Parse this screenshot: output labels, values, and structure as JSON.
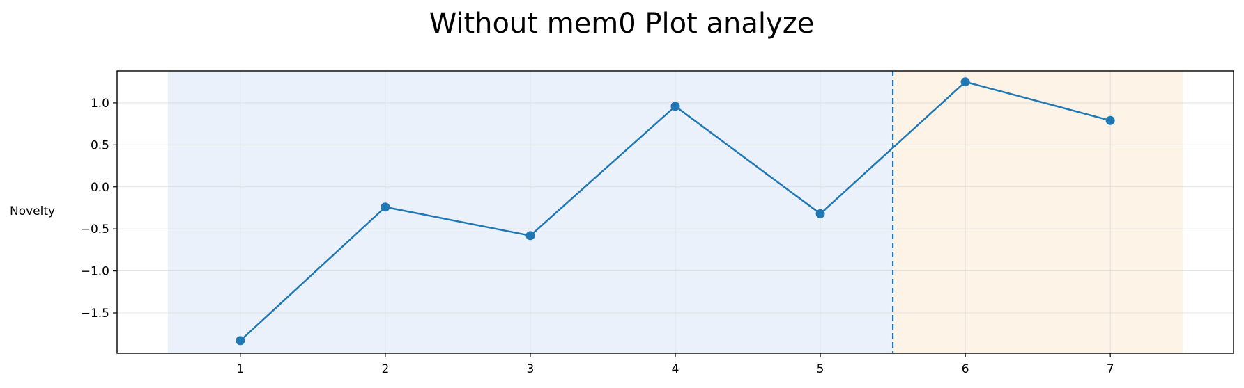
{
  "chart_data": {
    "type": "line",
    "title": "Without mem0 Plot analyze",
    "xlabel": "",
    "ylabel": "Novelty",
    "x": [
      1,
      2,
      3,
      4,
      5,
      6,
      7
    ],
    "xlim": [
      0.15,
      7.85
    ],
    "ylim": [
      -1.98,
      1.38
    ],
    "xticks": [
      1,
      2,
      3,
      4,
      5,
      6,
      7
    ],
    "yticks": [
      1.0,
      0.5,
      0.0,
      -0.5,
      -1.0,
      -1.5
    ],
    "ytick_labels": [
      "1.0",
      "0.5",
      "0.0",
      "−0.5",
      "−1.0",
      "−1.5"
    ],
    "series": [
      {
        "values": [
          -1.83,
          -0.24,
          -0.58,
          0.96,
          -0.32,
          1.25,
          0.79
        ],
        "color": "#1f77b4"
      }
    ],
    "shaded_regions": [
      {
        "x_start": 0.5,
        "x_end": 5.5,
        "color": "#eaf1fb"
      },
      {
        "x_start": 5.5,
        "x_end": 7.5,
        "color": "#fdf3e7"
      }
    ],
    "vertical_line": {
      "x": 5.5,
      "style": "dashed",
      "color": "#1f77b4"
    },
    "grid": true
  }
}
